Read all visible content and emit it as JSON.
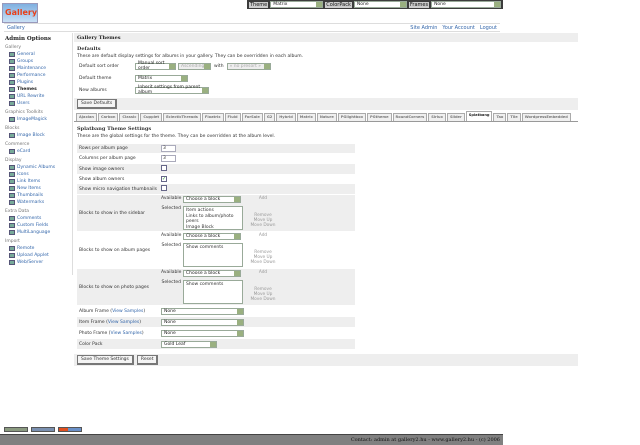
{
  "topbar": {
    "theme_label": "Theme",
    "theme_value": "Matrix",
    "colorpack_label": "ColorPack",
    "colorpack_value": "None",
    "frames_label": "Frames",
    "frames_value": "None"
  },
  "logo_text": "Gallery",
  "breadcrumb": {
    "root": "Gallery",
    "links": [
      "Site Admin",
      "Your Account",
      "Logout"
    ]
  },
  "sidebar": {
    "title": "Admin Options",
    "groups": [
      {
        "label": "Gallery",
        "items": [
          "General",
          "Groups",
          "Maintenance",
          "Performance",
          "Plugins",
          "Themes",
          "URL Rewrite",
          "Users"
        ]
      },
      {
        "label": "Graphics Toolkits",
        "items": [
          "ImageMagick"
        ]
      },
      {
        "label": "Blocks",
        "items": [
          "Image Block"
        ]
      },
      {
        "label": "Commerce",
        "items": [
          "eCard"
        ]
      },
      {
        "label": "Display",
        "items": [
          "Dynamic Albums",
          "Icons",
          "Link Items",
          "New Items",
          "Thumbnails",
          "Watermarks"
        ]
      },
      {
        "label": "Extra Data",
        "items": [
          "Comments",
          "Custom Fields",
          "MultiLanguage"
        ]
      },
      {
        "label": "Import",
        "items": [
          "Remote",
          "Upload Applet",
          "Web/Server"
        ]
      }
    ],
    "current": "Themes"
  },
  "main": {
    "title": "Gallery Themes",
    "defaults": {
      "title": "Defaults",
      "description": "These are default display settings for albums in your gallery. They can be overridden in each album.",
      "sort_label": "Default sort order",
      "sort_value": "Manual sort order",
      "sort_dir": "Ascending",
      "with_label": "with",
      "presort": "« no presort »",
      "theme_label": "Default theme",
      "theme_value": "Matrix",
      "new_label": "New albums",
      "new_value": "Inherit settings from parent album",
      "save": "Save Defaults"
    },
    "tabs": [
      "Ajaxian",
      "Carbon",
      "Classic",
      "Cupplet",
      "EclecticThreads",
      "Floatrix",
      "Fluid",
      "ForSale",
      "G2",
      "Hybrid",
      "Matrix",
      "Nature",
      "PGlightbox",
      "PGtheme",
      "RoundCorners",
      "Siriux",
      "Slider",
      "Splatbang",
      "Tao",
      "Tile",
      "WordpressEmbedded"
    ],
    "active_tab": "Splatbang",
    "settings": {
      "title": "Splatbang Theme Settings",
      "description": "These are the global settings for the theme. They can be overridden at the album level.",
      "rows_label": "Rows per album page",
      "rows_value": "3",
      "cols_label": "Columns per album page",
      "cols_value": "3",
      "image_owners_label": "Show image owners",
      "image_owners": false,
      "album_owners_label": "Show album owners",
      "album_owners": true,
      "micro_label": "Show micro navigation thumbnails",
      "micro": false,
      "available_label": "Available",
      "selected_label": "Selected",
      "choose": "Choose a block",
      "add": "Add",
      "remove": "Remove",
      "move_up": "Move Up",
      "move_down": "Move Down",
      "sidebar_blocks_label": "Blocks to show in the sidebar",
      "sidebar_blocks": [
        "Item actions",
        "Links to album/photo peers",
        "Image Block"
      ],
      "album_blocks_label": "Blocks to show on album pages",
      "album_blocks": [
        "Show comments"
      ],
      "photo_blocks_label": "Blocks to show on photo pages",
      "photo_blocks": [
        "Show comments"
      ],
      "view_samples": "View Samples",
      "album_frame_label": "Album Frame",
      "album_frame": "None",
      "item_frame_label": "Item Frame",
      "item_frame": "None",
      "photo_frame_label": "Photo Frame",
      "photo_frame": "None",
      "colorpack_label": "Color Pack",
      "colorpack": "Gold Leaf",
      "save": "Save Theme Settings",
      "reset": "Reset"
    }
  },
  "footer": "Contact: admin at gallery2.hu - www.gallery2.hu - (c) 2006"
}
